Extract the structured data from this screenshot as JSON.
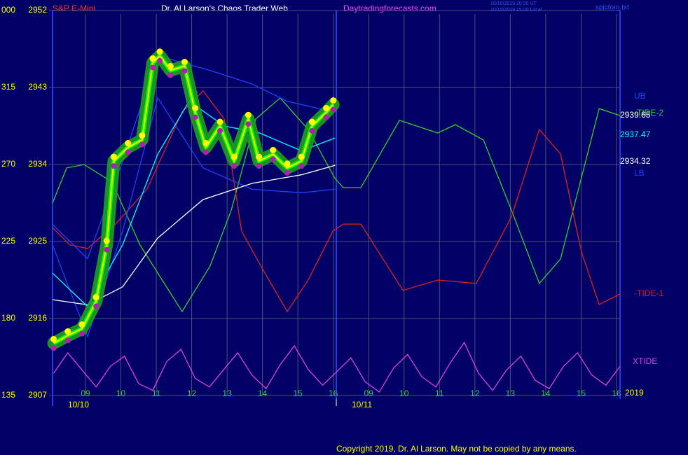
{
  "chart_data": {
    "type": "line",
    "title": "Dr. Al Larson's Chaos Trader Web",
    "source": "Daytradingforecasts.com",
    "timestamps": [
      "10/10/2019 20:20 UT",
      "10/10/2019 15:20 Local"
    ],
    "file": "spjctom.txt",
    "copyright": "Copyright 2019, Dr. Al Larson. May not be copied by any means.",
    "year": "2019",
    "dates": [
      "10/10",
      "10/11"
    ],
    "xlim": [
      0.07,
      16.1
    ],
    "xticks": [
      {
        "value": 1,
        "label": "09"
      },
      {
        "value": 2,
        "label": "10"
      },
      {
        "value": 3,
        "label": "11"
      },
      {
        "value": 4,
        "label": "12"
      },
      {
        "value": 5,
        "label": "13"
      },
      {
        "value": 6,
        "label": "14"
      },
      {
        "value": 7,
        "label": "15"
      },
      {
        "value": 8,
        "label": "16"
      },
      {
        "value": 9,
        "label": "09"
      },
      {
        "value": 10,
        "label": "10"
      },
      {
        "value": 11,
        "label": "11"
      },
      {
        "value": 12,
        "label": "12"
      },
      {
        "value": 13,
        "label": "13"
      },
      {
        "value": 14,
        "label": "14"
      },
      {
        "value": 15,
        "label": "15"
      },
      {
        "value": 16,
        "label": "16"
      }
    ],
    "ylim": [
      2907,
      2952
    ],
    "yticks": [
      2907,
      2916,
      2925,
      2934,
      2943,
      2952
    ],
    "y2lim": [
      135,
      360
    ],
    "y2ticks": [
      135,
      180,
      225,
      270,
      315,
      {
        "value": 360,
        "label": "000"
      }
    ],
    "grid": true,
    "series": [
      {
        "name": "S&P E-Mini",
        "color": "#ffff00",
        "end_value": 2939.65,
        "x": [
          0.1,
          0.5,
          0.9,
          1.3,
          1.6,
          1.8,
          2.2,
          2.6,
          2.9,
          3.1,
          3.4,
          3.8,
          4.1,
          4.4,
          4.8,
          5.2,
          5.6,
          5.9,
          6.3,
          6.7,
          7.1,
          7.4,
          7.8,
          8.0
        ],
        "values": [
          2913.1,
          2914.0,
          2914.8,
          2918.0,
          2924.6,
          2934.4,
          2936.0,
          2936.9,
          2945.9,
          2946.7,
          2945.0,
          2945.5,
          2940.1,
          2936.0,
          2938.5,
          2934.4,
          2939.3,
          2934.4,
          2935.2,
          2933.6,
          2934.4,
          2938.5,
          2940.1,
          2941.0
        ]
      },
      {
        "color": "#00ffff",
        "end_value": 2937.47,
        "x": [
          0.07,
          1.06,
          2.05,
          3.04,
          3.93,
          4.92,
          5.91,
          7.1,
          8.05
        ],
        "values": [
          2921.3,
          2917.4,
          2924.6,
          2935.2,
          2941.4,
          2938.5,
          2937.7,
          2935.6,
          2937.1
        ]
      },
      {
        "color": "#ffffff",
        "end_value": 2934.32,
        "x": [
          0.07,
          1.06,
          2.05,
          3.04,
          4.32,
          5.71,
          7.1,
          8.05
        ],
        "values": [
          2918.2,
          2917.6,
          2919.7,
          2925.4,
          2929.9,
          2931.8,
          2932.8,
          2933.9
        ]
      },
      {
        "name": "UB",
        "color": "#2040ff",
        "x": [
          0.07,
          1.06,
          2.05,
          3.04,
          4.52,
          5.71,
          6.7,
          8.05
        ],
        "values": [
          2927.0,
          2923.0,
          2934.4,
          2946.7,
          2945.0,
          2943.4,
          2941.4,
          2940.1
        ]
      },
      {
        "name": "LB",
        "color": "#2040ff",
        "x": [
          0.07,
          1.06,
          2.05,
          3.04,
          4.32,
          5.71,
          7.1,
          8.05
        ],
        "values": [
          2924.6,
          2913.9,
          2926.2,
          2941.8,
          2933.6,
          2931.1,
          2930.7,
          2931.1
        ]
      },
      {
        "name": "-TIDE-2",
        "color": "#30d030",
        "axis": "y2",
        "x": [
          0.07,
          0.47,
          0.96,
          1.75,
          2.54,
          3.73,
          4.52,
          5.12,
          5.81,
          6.5,
          7.29,
          8.05,
          8.28,
          8.78,
          9.87,
          10.95,
          11.45,
          12.24,
          13.03,
          13.82,
          14.42,
          15.51,
          16.1
        ],
        "values": [
          247.5,
          268.0,
          270.0,
          259.8,
          223.0,
          184.1,
          210.7,
          243.4,
          296.6,
          308.9,
          290.5,
          261.8,
          256.5,
          256.5,
          295.8,
          288.4,
          293.3,
          284.3,
          243.4,
          200.5,
          214.8,
          302.7,
          298.6
        ]
      },
      {
        "name": "-TIDE-1",
        "color": "#e02020",
        "axis": "y2",
        "x": [
          0.07,
          0.56,
          1.06,
          1.85,
          2.74,
          3.73,
          4.32,
          4.92,
          5.41,
          6.01,
          6.7,
          7.29,
          7.99,
          8.28,
          8.78,
          9.97,
          10.95,
          12.04,
          13.03,
          13.82,
          14.42,
          15.01,
          15.51,
          16.1
        ],
        "values": [
          233.2,
          223.0,
          220.9,
          235.2,
          255.7,
          300.7,
          313.0,
          296.6,
          231.1,
          208.6,
          184.1,
          202.5,
          231.1,
          235.2,
          235.2,
          196.4,
          202.5,
          200.5,
          239.3,
          290.5,
          276.1,
          218.9,
          188.2,
          194.3
        ]
      },
      {
        "name": "XTIDE",
        "color": "#e040e0",
        "axis": "y2",
        "x": [
          0.1,
          0.5,
          0.9,
          1.3,
          1.7,
          2.1,
          2.5,
          2.9,
          3.3,
          3.7,
          4.1,
          4.5,
          4.9,
          5.3,
          5.7,
          6.1,
          6.5,
          6.9,
          7.3,
          7.7,
          8.1,
          8.5,
          8.9,
          9.3,
          9.7,
          10.1,
          10.5,
          10.9,
          11.3,
          11.7,
          12.1,
          12.5,
          12.9,
          13.3,
          13.7,
          14.1,
          14.5,
          14.9,
          15.3,
          15.7,
          16.1
        ],
        "values": [
          148,
          160,
          150,
          140,
          152,
          158,
          142,
          138,
          155,
          162,
          145,
          140,
          150,
          160,
          147,
          139,
          153,
          164,
          150,
          141,
          149,
          157,
          143,
          137,
          151,
          159,
          146,
          140,
          154,
          166,
          148,
          138,
          150,
          158,
          144,
          139,
          152,
          160,
          147,
          141,
          152
        ]
      }
    ]
  }
}
